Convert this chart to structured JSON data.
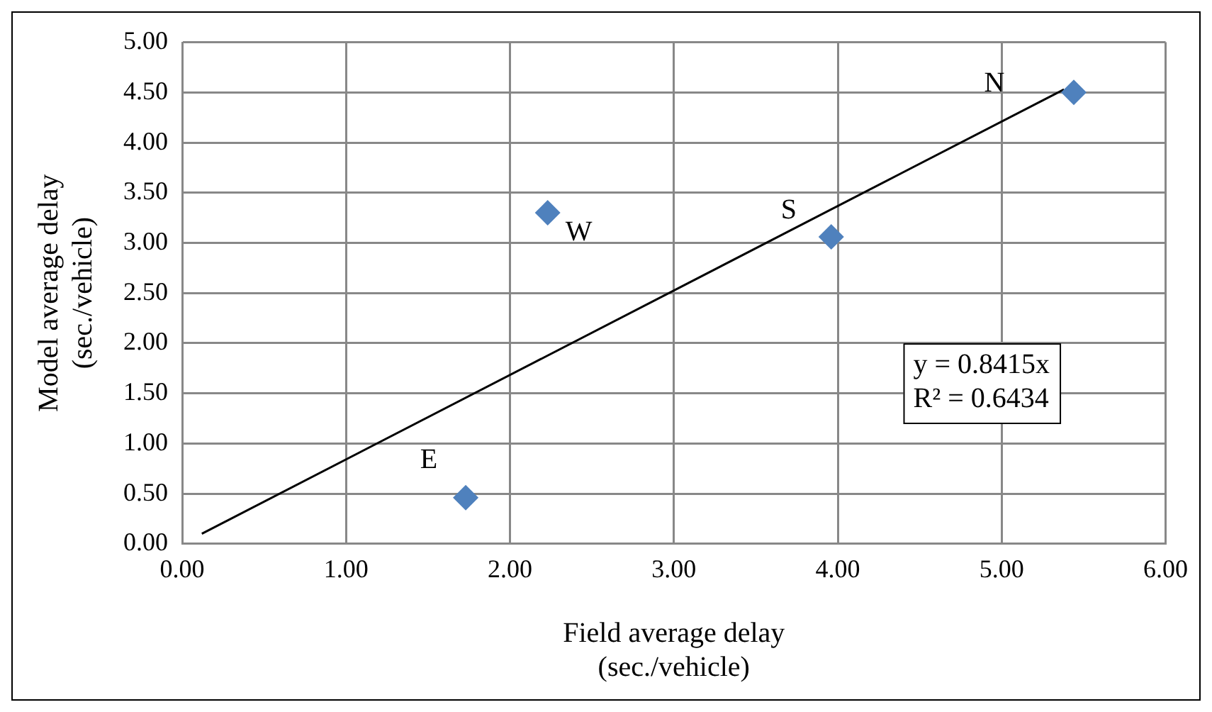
{
  "chart_data": {
    "type": "scatter",
    "xlabel": "Field average delay\n(sec./vehicle)",
    "ylabel": "Model average delay\n(sec./vehicle)",
    "x": [
      1.73,
      2.23,
      3.96,
      5.44
    ],
    "xlim": [
      0,
      6
    ],
    "xticks": [
      {
        "value": 0,
        "label": "0.00"
      },
      {
        "value": 1,
        "label": "1.00"
      },
      {
        "value": 2,
        "label": "2.00"
      },
      {
        "value": 3,
        "label": "3.00"
      },
      {
        "value": 4,
        "label": "4.00"
      },
      {
        "value": 5,
        "label": "5.00"
      },
      {
        "value": 6,
        "label": "6.00"
      }
    ],
    "ylim": [
      0,
      5
    ],
    "yticks": [
      {
        "value": 0,
        "label": "0.00"
      },
      {
        "value": 0.5,
        "label": "0.50"
      },
      {
        "value": 1,
        "label": "1.00"
      },
      {
        "value": 1.5,
        "label": "1.50"
      },
      {
        "value": 2,
        "label": "2.00"
      },
      {
        "value": 2.5,
        "label": "2.50"
      },
      {
        "value": 3,
        "label": "3.00"
      },
      {
        "value": 3.5,
        "label": "3.50"
      },
      {
        "value": 4,
        "label": "4.00"
      },
      {
        "value": 4.5,
        "label": "4.50"
      },
      {
        "value": 5,
        "label": "5.00"
      }
    ],
    "series": [
      {
        "type": "scatter",
        "color": "#4f81bd",
        "marker": "diamond",
        "values": [
          0.46,
          3.3,
          3.06,
          4.5
        ]
      },
      {
        "type": "line",
        "color": "#000000",
        "marker": "none",
        "line_style": "solid",
        "x": [
          0.12,
          5.38
        ],
        "values": [
          0.1,
          4.53
        ]
      }
    ],
    "annotations": [
      {
        "text": "E",
        "x": 1.73,
        "y": 0.46
      },
      {
        "text": "W",
        "x": 2.23,
        "y": 3.3
      },
      {
        "text": "S",
        "x": 3.96,
        "y": 3.06
      },
      {
        "text": "N",
        "x": 5.44,
        "y": 4.5
      },
      "y = 0.8415x\nR² = 0.6434"
    ],
    "grid": true,
    "legend": false
  }
}
